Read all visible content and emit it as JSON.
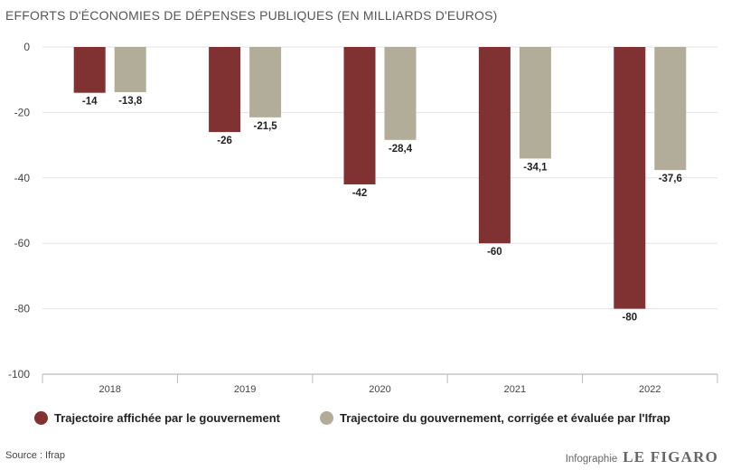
{
  "title": "EFFORTS D'ÉCONOMIES DE DÉPENSES PUBLIQUES (EN MILLIARDS D'EUROS)",
  "chart_data": {
    "type": "bar",
    "title": "EFFORTS D'ÉCONOMIES DE DÉPENSES PUBLIQUES (EN MILLIARDS D'EUROS)",
    "categories": [
      "2018",
      "2019",
      "2020",
      "2021",
      "2022"
    ],
    "series": [
      {
        "name": "Trajectoire affichée par le gouvernement",
        "color": "#803233",
        "values": [
          -14,
          -26,
          -42,
          -60,
          -80
        ],
        "labels": [
          "-14",
          "-26",
          "-42",
          "-60",
          "-80"
        ]
      },
      {
        "name": "Trajectoire du gouvernement, corrigée et évaluée par l'Ifrap",
        "color": "#b2ad99",
        "values": [
          -13.8,
          -21.5,
          -28.4,
          -34.1,
          -37.6
        ],
        "labels": [
          "-13,8",
          "-21,5",
          "-28,4",
          "-34,1",
          "-37,6"
        ]
      }
    ],
    "yticks": [
      0,
      -20,
      -40,
      -60,
      -80,
      -100
    ],
    "ylim": [
      -100,
      0
    ],
    "grid": true,
    "legend_position": "bottom"
  },
  "legend": [
    {
      "label": "Trajectoire affichée par le gouvernement",
      "color": "#803233"
    },
    {
      "label": "Trajectoire du gouvernement, corrigée et évaluée par l'Ifrap",
      "color": "#b2ad99"
    }
  ],
  "source": "Source : Ifrap",
  "credit": {
    "prefix": "Infographie",
    "brand": "LE FIGARO"
  }
}
